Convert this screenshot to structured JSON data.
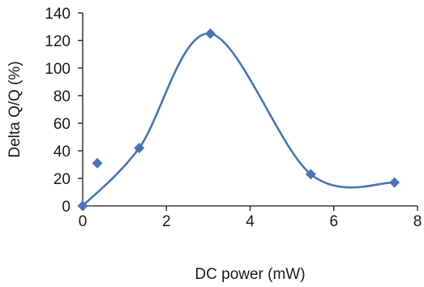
{
  "chart_data": {
    "type": "scatter",
    "title": "",
    "xlabel": "DC power (mW)",
    "ylabel": "Delta Q/Q (%)",
    "xlim": [
      0,
      8
    ],
    "ylim": [
      0,
      140
    ],
    "x_ticks": [
      0,
      2,
      4,
      6,
      8
    ],
    "y_ticks": [
      0,
      20,
      40,
      60,
      80,
      100,
      120,
      140
    ],
    "x_tick_labels": [
      "0",
      "2",
      "4",
      "6",
      "8"
    ],
    "y_tick_labels": [
      "0",
      "20",
      "40",
      "60",
      "80",
      "100",
      "120",
      "140"
    ],
    "grid": false,
    "legend": "none",
    "series": [
      {
        "points": [
          {
            "x": 0.0,
            "y": 0
          },
          {
            "x": 0.35,
            "y": 31
          },
          {
            "x": 1.35,
            "y": 42
          },
          {
            "x": 3.05,
            "y": 125
          },
          {
            "x": 5.45,
            "y": 23
          },
          {
            "x": 7.45,
            "y": 17
          }
        ],
        "marker": "diamond",
        "color": "#4a74b8"
      }
    ],
    "fit_curve": {
      "style": "smooth",
      "color": "#4a74b8",
      "points": [
        {
          "x": 0.0,
          "y": 0
        },
        {
          "x": 1.35,
          "y": 42
        },
        {
          "x": 3.05,
          "y": 125
        },
        {
          "x": 5.45,
          "y": 23
        },
        {
          "x": 7.45,
          "y": 17
        }
      ]
    }
  }
}
